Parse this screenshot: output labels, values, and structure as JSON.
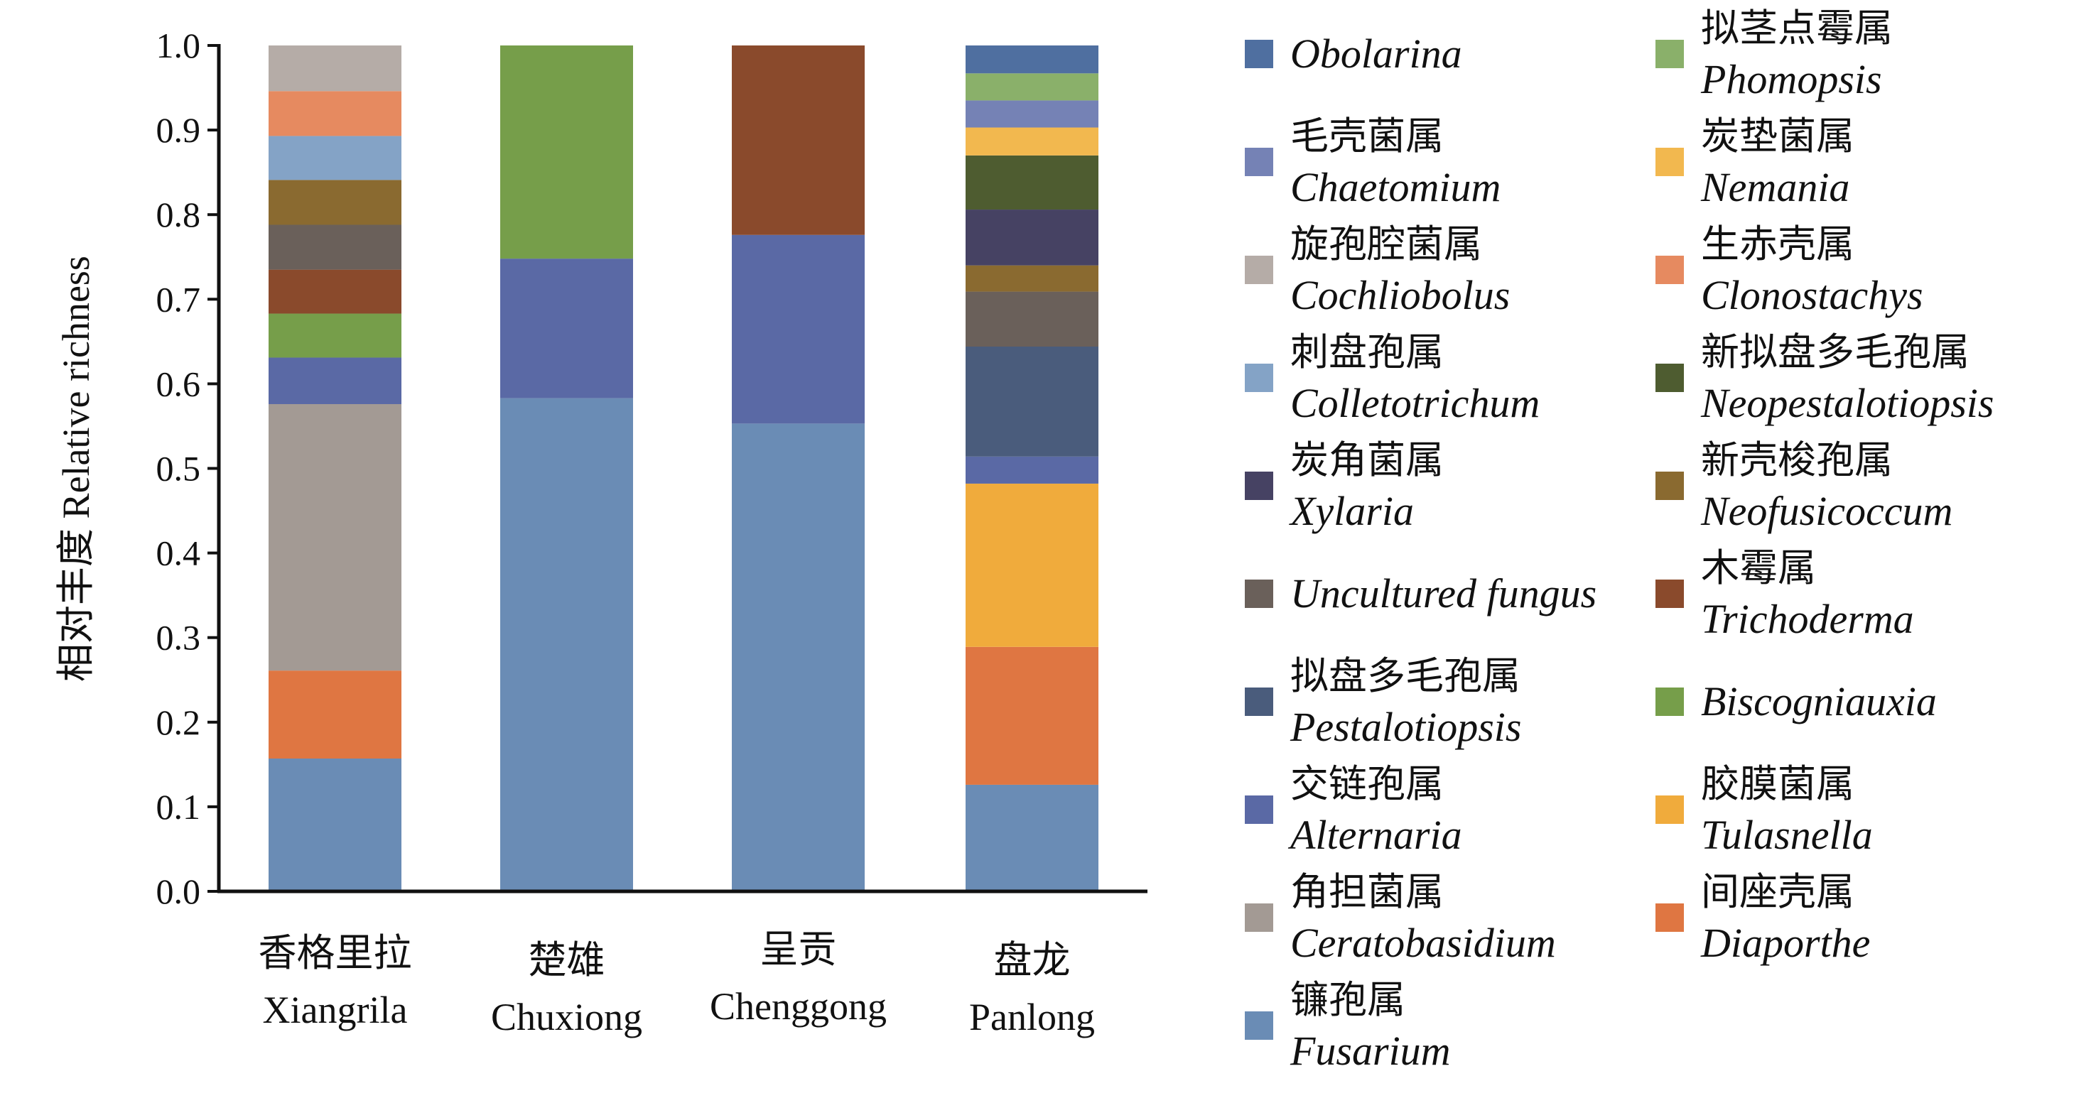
{
  "chart_data": {
    "type": "bar",
    "stacked": true,
    "ylabel": "相对丰度 Relative richness",
    "xlabel": "",
    "ylim": [
      0,
      1.0
    ],
    "yticks": [
      "0.0",
      "0.1",
      "0.2",
      "0.3",
      "0.4",
      "0.5",
      "0.6",
      "0.7",
      "0.8",
      "0.9",
      "1.0"
    ],
    "categories": [
      {
        "cn": "香格里拉",
        "en": "Xiangrila"
      },
      {
        "cn": "楚雄",
        "en": "Chuxiong"
      },
      {
        "cn": "呈贡",
        "en": "Chenggong"
      },
      {
        "cn": "盘龙",
        "en": "Panlong"
      }
    ],
    "series": [
      {
        "name": "Fusarium",
        "cn": "镰孢属",
        "color": "#6a8cb5",
        "values": [
          0.157,
          0.583,
          0.553,
          0.126
        ]
      },
      {
        "name": "Diaporthe",
        "cn": "间座壳属",
        "color": "#df7642",
        "values": [
          0.104,
          0,
          0,
          0.163
        ]
      },
      {
        "name": "Ceratobasidium",
        "cn": "角担菌属",
        "color": "#a39a94",
        "values": [
          0.315,
          0,
          0,
          0
        ]
      },
      {
        "name": "Tulasnella",
        "cn": "胶膜菌属",
        "color": "#f0ab3c",
        "values": [
          0,
          0,
          0,
          0.193
        ]
      },
      {
        "name": "Alternaria",
        "cn": "交链孢属",
        "color": "#5a69a5",
        "values": [
          0.055,
          0.165,
          0.223,
          0.032
        ]
      },
      {
        "name": "Pestalotiopsis",
        "cn": "拟盘多毛孢属",
        "color": "#4a5c7c",
        "values": [
          0,
          0,
          0,
          0.13
        ]
      },
      {
        "name": "Biscogniauxia",
        "cn": "",
        "color": "#769e4a",
        "values": [
          0.052,
          0.252,
          0,
          0
        ]
      },
      {
        "name": "Trichoderma",
        "cn": "木霉属",
        "color": "#8a4a2c",
        "values": [
          0.052,
          0,
          0.224,
          0
        ]
      },
      {
        "name": "Uncultured fungus",
        "cn": "",
        "color": "#6a605a",
        "values": [
          0.053,
          0,
          0,
          0.065
        ]
      },
      {
        "name": "Neofusicoccum",
        "cn": "新壳梭孢属",
        "color": "#8a6a30",
        "values": [
          0.053,
          0,
          0,
          0.031
        ]
      },
      {
        "name": "Xylaria",
        "cn": "炭角菌属",
        "color": "#464263",
        "values": [
          0,
          0,
          0,
          0.066
        ]
      },
      {
        "name": "Neopestalotiopsis",
        "cn": "新拟盘多毛孢属",
        "color": "#4e5c30",
        "values": [
          0,
          0,
          0,
          0.064
        ]
      },
      {
        "name": "Colletotrichum",
        "cn": "刺盘孢属",
        "color": "#84a3c6",
        "values": [
          0.052,
          0,
          0,
          0
        ]
      },
      {
        "name": "Nemania",
        "cn": "炭垫菌属",
        "color": "#f2b84f",
        "values": [
          0,
          0,
          0,
          0.033
        ]
      },
      {
        "name": "Clonostachys",
        "cn": "生赤壳属",
        "color": "#e68a60",
        "values": [
          0.053,
          0,
          0,
          0
        ]
      },
      {
        "name": "Chaetomium",
        "cn": "毛壳菌属",
        "color": "#7582b5",
        "values": [
          0,
          0,
          0,
          0.032
        ]
      },
      {
        "name": "Cochliobolus",
        "cn": "旋孢腔菌属",
        "color": "#b5aca7",
        "values": [
          0.054,
          0,
          0,
          0
        ]
      },
      {
        "name": "Phomopsis",
        "cn": "拟茎点霉属",
        "color": "#8ab06a",
        "values": [
          0,
          0,
          0,
          0.032
        ]
      },
      {
        "name": "Obolarina",
        "cn": "",
        "color": "#4f6fa0",
        "values": [
          0,
          0,
          0,
          0.033
        ]
      }
    ],
    "legend": {
      "placement": "right",
      "left_column": [
        "Obolarina",
        "Chaetomium",
        "Cochliobolus",
        "Colletotrichum",
        "Xylaria",
        "Uncultured fungus",
        "Pestalotiopsis",
        "Alternaria",
        "Ceratobasidium",
        "Fusarium"
      ],
      "right_column": [
        "Phomopsis",
        "Nemania",
        "Clonostachys",
        "Neopestalotiopsis",
        "Neofusicoccum",
        "Trichoderma",
        "Biscogniauxia",
        "Tulasnella",
        "Diaporthe"
      ]
    }
  }
}
